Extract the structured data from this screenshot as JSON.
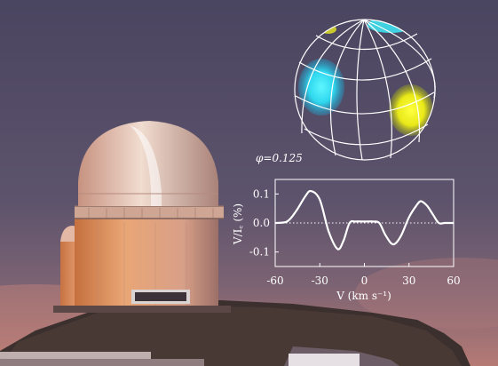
{
  "phase_label": "φ=0.125",
  "chart_data": {
    "type": "line",
    "title": "",
    "xlabel": "V (km s⁻¹)",
    "ylabel": "V/I꜀ (%)",
    "xlim": [
      -60,
      60
    ],
    "ylim": [
      -0.15,
      0.15
    ],
    "x_ticks": [
      "-60",
      "-30",
      "0",
      "30",
      "60"
    ],
    "y_ticks": [
      "0.1",
      "0.0",
      "-0.1"
    ],
    "x_tick_values": [
      -60,
      -30,
      0,
      30,
      60
    ],
    "y_tick_values": [
      0.1,
      0.0,
      -0.1
    ],
    "zero_line": true,
    "series": [
      {
        "x": [
          -60,
          -52,
          -46,
          -40,
          -36,
          -30,
          -24,
          -18,
          -14,
          -10,
          -6,
          0,
          6,
          10,
          14,
          18,
          21,
          25,
          30,
          35,
          38,
          42,
          46,
          50,
          54,
          60
        ],
        "y": [
          0.0,
          0.005,
          0.04,
          0.09,
          0.11,
          0.08,
          -0.03,
          -0.09,
          -0.06,
          0.0,
          0.005,
          0.005,
          0.005,
          0.0,
          -0.04,
          -0.07,
          -0.07,
          -0.04,
          0.02,
          0.06,
          0.075,
          0.06,
          0.03,
          0.0,
          0.0,
          0.0
        ]
      }
    ]
  },
  "colors": {
    "sky_top": "#4c4560",
    "sky_mid": "#6c5a6f",
    "sky_horizon": "#b97c77",
    "plot_line": "#ffffff",
    "spot_cyan": "#40e8f0",
    "spot_yellow": "#f0f020"
  }
}
